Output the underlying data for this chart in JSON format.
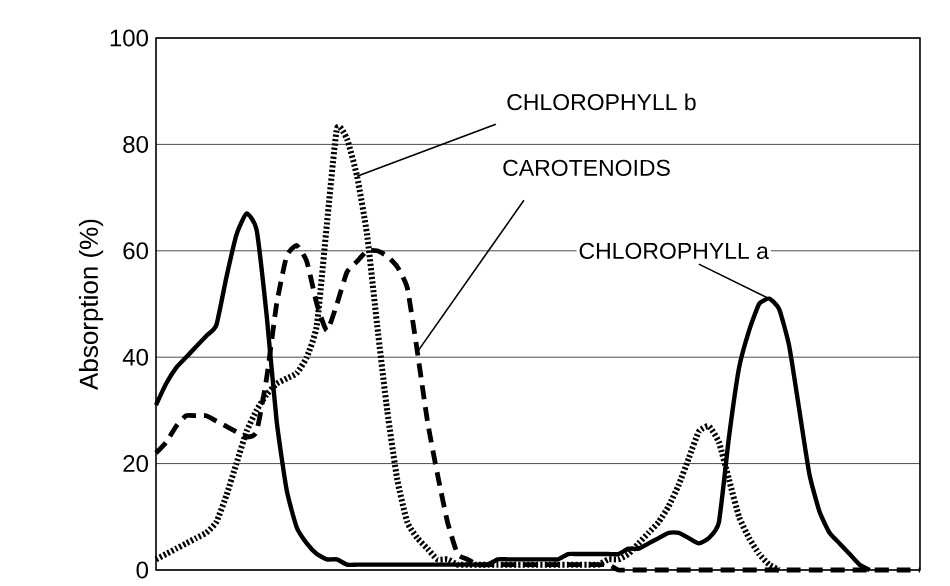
{
  "chart_data": {
    "type": "line",
    "ylabel": "Absorption (%)",
    "ylim": [
      0,
      100
    ],
    "yticks": [
      0,
      20,
      40,
      60,
      80,
      100
    ],
    "tick_labels": "y",
    "grid": "y",
    "legend": false,
    "marker": "none",
    "categories": [
      null,
      null,
      null,
      null,
      null,
      null,
      null,
      null,
      null,
      null,
      null,
      null,
      null,
      null,
      null,
      null,
      null,
      null,
      null,
      null,
      null,
      null,
      null,
      null,
      null,
      null,
      null,
      null,
      null,
      null,
      null,
      null,
      null,
      null,
      null,
      null,
      null,
      null,
      null,
      null,
      null,
      null,
      null,
      null,
      null,
      null,
      null,
      null,
      null,
      null,
      null,
      null,
      null,
      null,
      null,
      null,
      null,
      null,
      null,
      null,
      null,
      null,
      null,
      null,
      null,
      null,
      null,
      null,
      null,
      null,
      null,
      null,
      null,
      null,
      null,
      null,
      null
    ],
    "series": [
      {
        "name": "CHLOROPHYLL a",
        "color": "#000000",
        "line_style": "solid",
        "values": [
          31,
          35,
          38,
          40,
          42,
          44,
          46,
          55,
          63,
          67,
          64,
          48,
          28,
          15,
          8,
          5,
          3,
          2,
          2,
          1,
          1,
          1,
          1,
          1,
          1,
          1,
          1,
          1,
          1,
          1,
          1,
          1,
          1,
          1,
          2,
          2,
          2,
          2,
          2,
          2,
          2,
          3,
          3,
          3,
          3,
          3,
          3,
          4,
          4,
          5,
          6,
          7,
          7,
          6,
          5,
          6,
          9,
          25,
          38,
          45,
          50,
          51,
          49,
          42,
          30,
          18,
          11,
          7,
          5,
          3,
          1,
          0,
          null,
          null,
          null,
          null,
          null
        ]
      },
      {
        "name": "CHLOROPHYLL b",
        "color": "#000000",
        "line_style": "dotted",
        "values": [
          2,
          3,
          4,
          5,
          6,
          7,
          9,
          14,
          20,
          26,
          30,
          33,
          35,
          36,
          37,
          40,
          46,
          65,
          83,
          81,
          74,
          63,
          46,
          30,
          17,
          9,
          6,
          4,
          2,
          2,
          1,
          1,
          1,
          1,
          1,
          1,
          1,
          1,
          1,
          1,
          1,
          1,
          1,
          1,
          1,
          2,
          2,
          3,
          5,
          7,
          9,
          12,
          16,
          21,
          26,
          27,
          24,
          17,
          10,
          6,
          3,
          1,
          0,
          null,
          null,
          null,
          null,
          null,
          null,
          null,
          null,
          null,
          null,
          null,
          null,
          null,
          null
        ]
      },
      {
        "name": "CAROTENOIDS",
        "color": "#000000",
        "line_style": "dashed",
        "values": [
          22,
          24,
          27,
          29,
          29,
          29,
          28,
          27,
          26,
          25,
          26,
          36,
          50,
          59,
          61,
          58,
          50,
          45,
          50,
          56,
          58,
          60,
          60,
          59,
          57,
          53,
          41,
          28,
          18,
          9,
          3,
          2,
          1,
          1,
          1,
          1,
          1,
          1,
          1,
          1,
          1,
          1,
          1,
          1,
          1,
          1,
          0,
          0,
          0,
          0,
          0,
          0,
          0,
          0,
          0,
          0,
          0,
          0,
          0,
          0,
          0,
          0,
          0,
          0,
          0,
          0,
          0,
          0,
          0,
          0,
          0,
          0,
          0,
          0,
          0,
          0,
          0
        ]
      }
    ]
  }
}
